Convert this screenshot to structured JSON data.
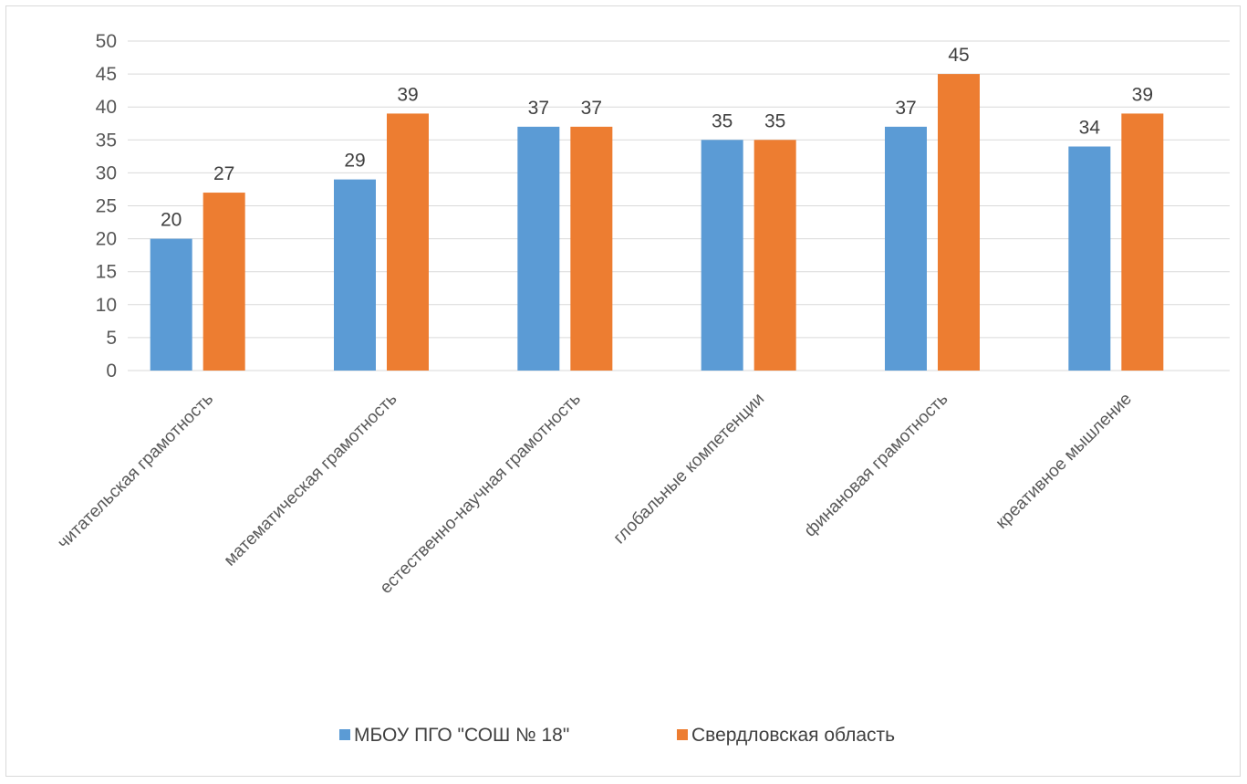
{
  "chart_data": {
    "type": "bar",
    "title": "",
    "xlabel": "",
    "ylabel": "",
    "ylim": [
      0,
      50
    ],
    "yticks": [
      0,
      5,
      10,
      15,
      20,
      25,
      30,
      35,
      40,
      45,
      50
    ],
    "grid": true,
    "legend_position": "bottom",
    "categories": [
      "читательская грамотность",
      "математическая грамотность",
      "естественно-научная грамотность",
      "глобальные компетенции",
      "финановая грамотность",
      "креативное мышление"
    ],
    "series": [
      {
        "name": "МБОУ ПГО \"СОШ № 18\"",
        "color": "#5b9bd5",
        "values": [
          20,
          29,
          37,
          35,
          37,
          34
        ]
      },
      {
        "name": "Свердловская область",
        "color": "#ed7d31",
        "values": [
          27,
          39,
          37,
          35,
          45,
          39
        ]
      }
    ]
  }
}
